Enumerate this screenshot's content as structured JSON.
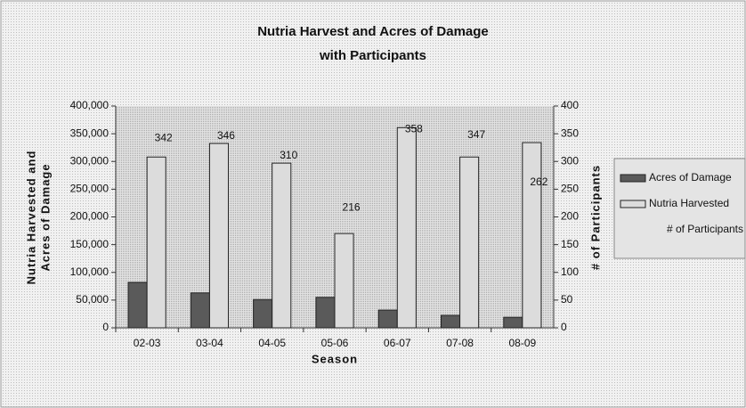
{
  "chart_data": {
    "type": "bar",
    "title": "Nutria Harvest and Acres of Damage",
    "subtitle": "with Participants",
    "x_label": "Season",
    "y_label": [
      "Nutria Harvested and",
      "Acres of Damage"
    ],
    "y2_label": "# of Participants",
    "categories": [
      "02-03",
      "03-04",
      "04-05",
      "05-06",
      "06-07",
      "07-08",
      "08-09"
    ],
    "series": [
      {
        "name": "Acres of Damage",
        "color": "#5a5a5a",
        "values": [
          82000,
          63000,
          51000,
          55000,
          32000,
          22500,
          19000
        ]
      },
      {
        "name": "Nutria Harvested",
        "color": "#dcdcdc",
        "values": [
          308000,
          332500,
          297000,
          170000,
          361000,
          308000,
          334000
        ]
      },
      {
        "name": "# of Participants",
        "axis": "y2",
        "values": [
          342,
          346,
          310,
          216,
          358,
          347,
          262
        ]
      }
    ],
    "ylim": [
      0,
      400000
    ],
    "yticks": [
      0,
      {
        "value": 50000,
        "label": "50,000"
      },
      {
        "value": 100000,
        "label": "100,000"
      },
      {
        "value": 150000,
        "label": "150,000"
      },
      {
        "value": 200000,
        "label": "200,000"
      },
      {
        "value": 250000,
        "label": "250,000"
      },
      {
        "value": 300000,
        "label": "300,000"
      },
      {
        "value": 350000,
        "label": "350,000"
      },
      {
        "value": 400000,
        "label": "400,000"
      }
    ],
    "y2lim": [
      0,
      400
    ],
    "y2ticks": [
      0,
      50,
      100,
      150,
      200,
      250,
      300,
      350,
      400
    ],
    "legend": "right"
  }
}
